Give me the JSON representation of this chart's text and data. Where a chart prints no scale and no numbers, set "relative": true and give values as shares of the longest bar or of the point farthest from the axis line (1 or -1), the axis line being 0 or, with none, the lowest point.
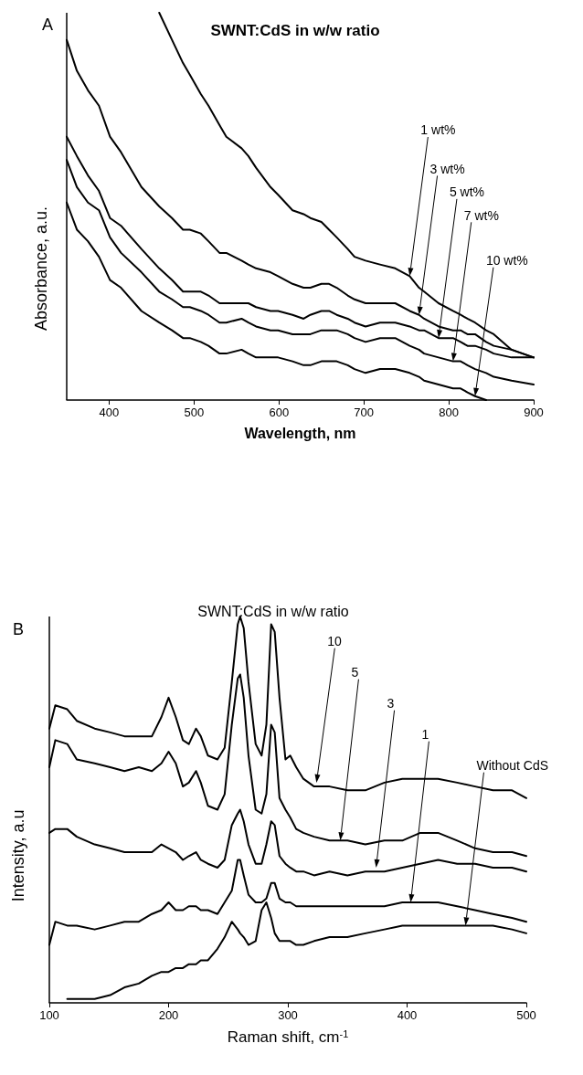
{
  "chart_data": [
    {
      "type": "line",
      "title": "SWNT:CdS in w/w ratio",
      "xlabel": "Wavelength, nm",
      "ylabel": "Absorbance, a.u.",
      "relative": true,
      "xlim": [
        350,
        900
      ],
      "xticks": [
        400,
        500,
        600,
        700,
        800,
        900
      ],
      "grid": false,
      "marker": "none",
      "line_style": "solid",
      "annotations": [
        "A",
        {
          "text": "1 wt%",
          "x": 754,
          "y": 0.32
        },
        {
          "text": "3 wt%",
          "x": 765,
          "y": 0.22
        },
        {
          "text": "5 wt%",
          "x": 788,
          "y": 0.16
        },
        {
          "text": "7 wt%",
          "x": 805,
          "y": 0.1
        },
        {
          "text": "10 wt%",
          "x": 831,
          "y": 0.01
        }
      ],
      "x": [
        350,
        362,
        375,
        388,
        401,
        414,
        438,
        459,
        474,
        487,
        495,
        508,
        517,
        530,
        538,
        556,
        564,
        573,
        590,
        599,
        616,
        629,
        637,
        650,
        659,
        668,
        681,
        689,
        702,
        719,
        737,
        754,
        765,
        771,
        788,
        805,
        814,
        822,
        831,
        844,
        853,
        874,
        900
      ],
      "series": [
        {
          "color": "#000000",
          "values": [
            null,
            null,
            null,
            null,
            null,
            null,
            null,
            1.0,
            0.93,
            0.87,
            0.84,
            0.79,
            0.76,
            0.71,
            0.68,
            0.65,
            0.63,
            0.6,
            0.55,
            0.53,
            0.49,
            0.48,
            0.47,
            0.46,
            0.44,
            0.42,
            0.39,
            0.37,
            0.36,
            0.35,
            0.34,
            0.32,
            0.29,
            0.28,
            0.25,
            0.23,
            0.22,
            0.21,
            0.2,
            0.18,
            0.17,
            0.13,
            0.11
          ]
        },
        {
          "color": "#000000",
          "values": [
            0.93,
            0.85,
            0.8,
            0.76,
            0.68,
            0.64,
            0.55,
            0.5,
            0.47,
            0.44,
            0.44,
            0.43,
            0.41,
            0.38,
            0.38,
            0.36,
            0.35,
            0.34,
            0.33,
            0.32,
            0.3,
            0.29,
            0.29,
            0.3,
            0.3,
            0.29,
            0.27,
            0.26,
            0.25,
            0.25,
            0.25,
            0.23,
            0.22,
            0.21,
            0.19,
            0.18,
            0.18,
            0.17,
            0.17,
            0.15,
            0.14,
            0.13,
            0.11
          ]
        },
        {
          "color": "#000000",
          "values": [
            0.68,
            0.63,
            0.58,
            0.54,
            0.47,
            0.45,
            0.39,
            0.34,
            0.31,
            0.28,
            0.28,
            0.28,
            0.27,
            0.25,
            0.25,
            0.25,
            0.25,
            0.24,
            0.23,
            0.23,
            0.22,
            0.21,
            0.22,
            0.23,
            0.23,
            0.22,
            0.21,
            0.2,
            0.19,
            0.2,
            0.2,
            0.19,
            0.18,
            0.18,
            0.16,
            0.16,
            0.15,
            0.14,
            0.14,
            0.13,
            0.12,
            0.11,
            0.11
          ]
        },
        {
          "color": "#000000",
          "values": [
            0.62,
            0.55,
            0.51,
            0.49,
            0.42,
            0.38,
            0.33,
            0.28,
            0.26,
            0.24,
            0.24,
            0.23,
            0.22,
            0.2,
            0.2,
            0.21,
            0.2,
            0.19,
            0.18,
            0.18,
            0.17,
            0.17,
            0.17,
            0.18,
            0.18,
            0.18,
            0.17,
            0.16,
            0.15,
            0.16,
            0.16,
            0.14,
            0.13,
            0.12,
            0.11,
            0.1,
            0.1,
            0.09,
            0.08,
            0.07,
            0.06,
            0.05,
            0.04
          ]
        },
        {
          "color": "#000000",
          "values": [
            0.51,
            0.44,
            0.41,
            0.37,
            0.31,
            0.29,
            0.23,
            0.2,
            0.18,
            0.16,
            0.16,
            0.15,
            0.14,
            0.12,
            0.12,
            0.13,
            0.12,
            0.11,
            0.11,
            0.11,
            0.1,
            0.09,
            0.09,
            0.1,
            0.1,
            0.1,
            0.09,
            0.08,
            0.07,
            0.08,
            0.08,
            0.07,
            0.06,
            0.05,
            0.04,
            0.03,
            0.03,
            0.02,
            0.01,
            0,
            null,
            null,
            null
          ]
        }
      ]
    },
    {
      "type": "line",
      "title": "SWNT:CdS in w/w ratio",
      "xlabel": "Raman shift, cm$^{-1}$",
      "ylabel": "Intensity, a.u",
      "relative": true,
      "xlim": [
        100,
        500
      ],
      "xticks": [
        100,
        200,
        300,
        400,
        500
      ],
      "grid": false,
      "marker": "none",
      "line_style": "solid",
      "annotations": [
        "B",
        {
          "text": "10",
          "x": 324,
          "y": 0.57
        },
        {
          "text": "5",
          "x": 344,
          "y": 0.42
        },
        {
          "text": "3",
          "x": 374,
          "y": 0.35
        },
        {
          "text": "1",
          "x": 403,
          "y": 0.26
        },
        {
          "text": "Without CdS",
          "x": 449,
          "y": 0.2
        }
      ],
      "x": [
        100,
        105,
        115,
        123,
        138,
        151,
        163,
        175,
        186,
        194,
        200,
        206,
        212,
        217,
        223,
        227,
        233,
        241,
        247,
        253,
        258,
        260,
        263,
        267,
        273,
        278,
        282,
        286,
        289,
        293,
        298,
        302,
        307,
        313,
        322,
        335,
        350,
        365,
        381,
        396,
        411,
        426,
        442,
        457,
        472,
        488,
        500
      ],
      "series": [
        {
          "color": "#000000",
          "values": [
            0.71,
            0.77,
            0.76,
            0.73,
            0.71,
            0.7,
            0.69,
            0.69,
            0.69,
            0.74,
            0.79,
            0.74,
            0.68,
            0.67,
            0.71,
            0.69,
            0.64,
            0.63,
            0.66,
            0.83,
            0.98,
            1.0,
            0.97,
            0.83,
            0.67,
            0.64,
            0.72,
            0.98,
            0.96,
            0.79,
            0.63,
            0.64,
            0.61,
            0.58,
            0.56,
            0.56,
            0.55,
            0.55,
            0.57,
            0.58,
            0.58,
            0.58,
            0.57,
            0.56,
            0.55,
            0.55,
            0.53
          ]
        },
        {
          "color": "#000000",
          "values": [
            0.61,
            0.68,
            0.67,
            0.63,
            0.62,
            0.61,
            0.6,
            0.61,
            0.6,
            0.62,
            0.65,
            0.62,
            0.56,
            0.57,
            0.6,
            0.57,
            0.51,
            0.5,
            0.54,
            0.72,
            0.84,
            0.85,
            0.79,
            0.64,
            0.5,
            0.49,
            0.54,
            0.72,
            0.7,
            0.53,
            0.5,
            0.48,
            0.45,
            0.44,
            0.43,
            0.42,
            0.42,
            0.41,
            0.42,
            0.42,
            0.44,
            0.44,
            0.42,
            0.4,
            0.39,
            0.39,
            0.38
          ]
        },
        {
          "color": "#000000",
          "values": [
            0.44,
            0.45,
            0.45,
            0.43,
            0.41,
            0.4,
            0.39,
            0.39,
            0.39,
            0.41,
            0.4,
            0.39,
            0.37,
            0.38,
            0.39,
            0.37,
            0.36,
            0.35,
            0.37,
            0.46,
            0.49,
            0.5,
            0.47,
            0.41,
            0.36,
            0.36,
            0.41,
            0.47,
            0.46,
            0.38,
            0.36,
            0.35,
            0.34,
            0.34,
            0.33,
            0.34,
            0.33,
            0.34,
            0.34,
            0.35,
            0.36,
            0.37,
            0.36,
            0.36,
            0.35,
            0.35,
            0.34
          ]
        },
        {
          "color": "#000000",
          "values": [
            0.15,
            0.21,
            0.2,
            0.2,
            0.19,
            0.2,
            0.21,
            0.21,
            0.23,
            0.24,
            0.26,
            0.24,
            0.24,
            0.25,
            0.25,
            0.24,
            0.24,
            0.23,
            0.26,
            0.29,
            0.37,
            0.37,
            0.33,
            0.28,
            0.26,
            0.26,
            0.27,
            0.31,
            0.31,
            0.27,
            0.26,
            0.26,
            0.25,
            0.25,
            0.25,
            0.25,
            0.25,
            0.25,
            0.25,
            0.26,
            0.26,
            0.26,
            0.25,
            0.24,
            0.23,
            0.22,
            0.21
          ]
        },
        {
          "color": "#000000",
          "values": [
            null,
            null,
            0.01,
            0.01,
            0.01,
            0.02,
            0.04,
            0.05,
            0.07,
            0.08,
            0.08,
            0.09,
            0.09,
            0.1,
            0.1,
            0.11,
            0.11,
            0.14,
            0.17,
            0.21,
            0.19,
            0.18,
            0.17,
            0.15,
            0.16,
            0.24,
            0.26,
            0.22,
            0.18,
            0.16,
            0.16,
            0.16,
            0.15,
            0.15,
            0.16,
            0.17,
            0.17,
            0.18,
            0.19,
            0.2,
            0.2,
            0.2,
            0.2,
            0.2,
            0.2,
            0.19,
            0.18
          ]
        }
      ]
    }
  ]
}
